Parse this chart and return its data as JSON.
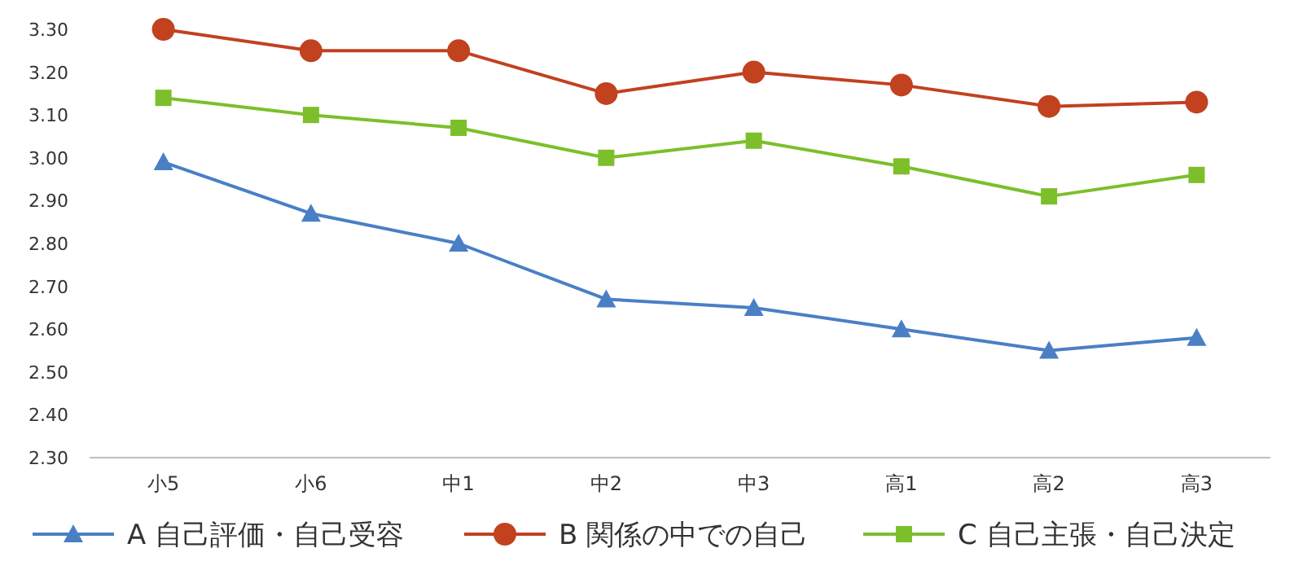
{
  "chart_data": {
    "type": "line",
    "categories": [
      "小5",
      "小6",
      "中1",
      "中2",
      "中3",
      "高1",
      "高2",
      "高3"
    ],
    "series": [
      {
        "name": "A 自己評価・自己受容",
        "color": "#4a7fc6",
        "marker": "triangle",
        "values": [
          2.99,
          2.87,
          2.8,
          2.67,
          2.65,
          2.6,
          2.55,
          2.58
        ]
      },
      {
        "name": "B 関係の中での自己",
        "color": "#c2411f",
        "marker": "circle",
        "values": [
          3.3,
          3.25,
          3.25,
          3.15,
          3.2,
          3.17,
          3.12,
          3.13
        ]
      },
      {
        "name": "C 自己主張・自己決定",
        "color": "#7cbf2b",
        "marker": "square",
        "values": [
          3.14,
          3.1,
          3.07,
          3.0,
          3.04,
          2.98,
          2.91,
          2.96
        ]
      }
    ],
    "ylim": [
      2.3,
      3.3
    ],
    "yticks": [
      {
        "value": 2.3,
        "label": "2.30"
      },
      {
        "value": 2.4,
        "label": "2.40"
      },
      {
        "value": 2.5,
        "label": "2.50"
      },
      {
        "value": 2.6,
        "label": "2.60"
      },
      {
        "value": 2.7,
        "label": "2.70"
      },
      {
        "value": 2.8,
        "label": "2.80"
      },
      {
        "value": 2.9,
        "label": "2.90"
      },
      {
        "value": 3.0,
        "label": "3.00"
      },
      {
        "value": 3.1,
        "label": "3.10"
      },
      {
        "value": 3.2,
        "label": "3.20"
      },
      {
        "value": 3.3,
        "label": "3.30"
      }
    ],
    "legend": "bottom",
    "grid": false
  }
}
